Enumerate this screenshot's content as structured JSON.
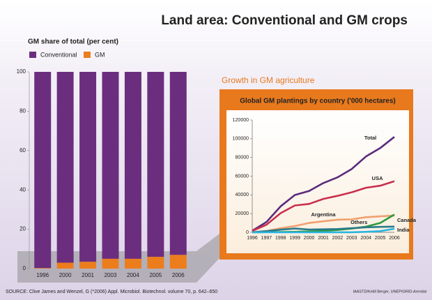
{
  "title": "Land area: Conventional and GM crops",
  "source": "SOURCE: Clive James and Wenzel, G (*2006) Appl. Microbiol. Biotechnol. volume 70, p. 642–650",
  "credit": "IAASTD/Ketill Berger, UNEP/GRID-Arendal",
  "chart_data": [
    {
      "type": "bar",
      "stacked": true,
      "title": "GM share of total (per cent)",
      "categories": [
        "1996",
        "2000",
        "2001",
        "2003",
        "2004",
        "2005",
        "2006"
      ],
      "series": [
        {
          "name": "Conventional",
          "color": "#6b2e7e",
          "values": [
            99.7,
            97,
            96.5,
            95,
            95,
            94,
            93
          ]
        },
        {
          "name": "GM",
          "color": "#ec7d1d",
          "values": [
            0.3,
            3,
            3.5,
            5,
            5,
            6,
            7
          ]
        }
      ],
      "ylim": [
        0,
        100
      ],
      "yticks": [
        0,
        20,
        40,
        60,
        80,
        100
      ],
      "legend": "top-left"
    },
    {
      "type": "line",
      "subtitle": "Growth in GM agriculture",
      "title": "Global GM plantings by country ('000 hectares)",
      "categories": [
        "1996",
        "1997",
        "1998",
        "1999",
        "2000",
        "2001",
        "2002",
        "2003",
        "2004",
        "2005",
        "2006"
      ],
      "series": [
        {
          "name": "Total",
          "color": "#5b2a7c",
          "values": [
            1700,
            11000,
            27800,
            39900,
            44200,
            52600,
            58700,
            67700,
            81000,
            90000,
            102000
          ]
        },
        {
          "name": "USA",
          "color": "#c8304e",
          "values": [
            1500,
            8100,
            20500,
            28700,
            30300,
            35700,
            39000,
            42800,
            47600,
            49800,
            54600
          ]
        },
        {
          "name": "Argentina",
          "color": "#f0a070",
          "values": [
            100,
            1400,
            4300,
            6700,
            10000,
            11800,
            13500,
            13900,
            16200,
            17100,
            18000
          ]
        },
        {
          "name": "Others",
          "color": "#2e9a3e",
          "values": [
            0,
            200,
            300,
            500,
            1000,
            1500,
            2500,
            4000,
            6000,
            10000,
            19000
          ]
        },
        {
          "name": "Canada",
          "color": "#2a7a8a",
          "values": [
            100,
            1300,
            2800,
            4000,
            3000,
            3200,
            3500,
            4400,
            5400,
            5800,
            6100
          ]
        },
        {
          "name": "India",
          "color": "#2ab4e0",
          "values": [
            0,
            0,
            0,
            0,
            0,
            0,
            50,
            100,
            500,
            1300,
            3800
          ]
        }
      ],
      "ylim": [
        0,
        120000
      ],
      "yticks": [
        0,
        20000,
        40000,
        60000,
        80000,
        100000,
        120000
      ],
      "grid": false
    }
  ]
}
